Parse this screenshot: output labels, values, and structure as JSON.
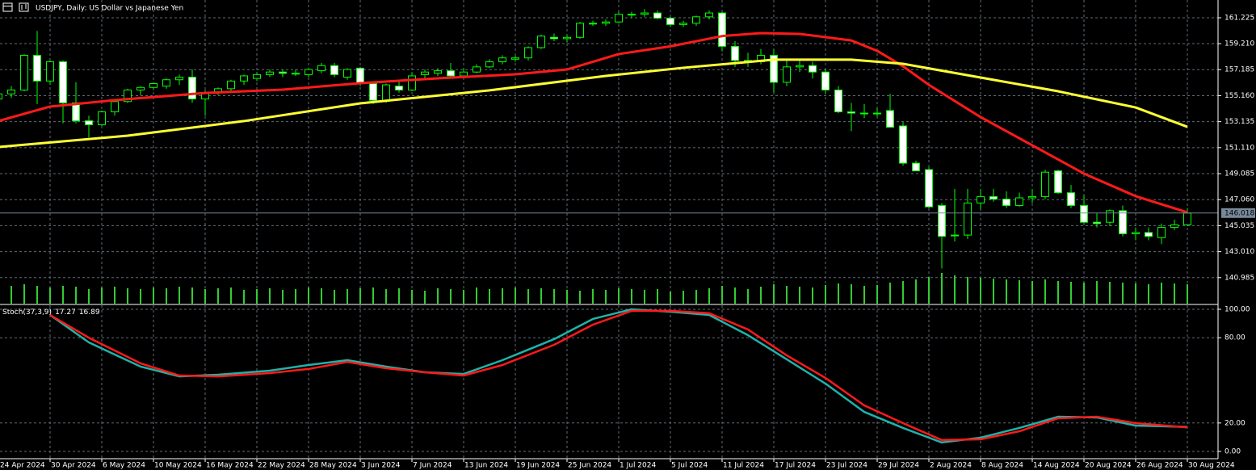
{
  "chart_data": [
    {
      "type": "candlestick",
      "title": "USDJPY, Daily:  US Dollar vs Japanese Yen",
      "categories": [
        "24 Apr 2024",
        null,
        null,
        null,
        "30 Apr 2024",
        null,
        null,
        null,
        "6 May 2024",
        null,
        null,
        null,
        "10 May 2024",
        null,
        null,
        null,
        "16 May 2024",
        null,
        null,
        null,
        "22 May 2024",
        null,
        null,
        null,
        "28 May 2024",
        null,
        null,
        null,
        "3 Jun 2024",
        null,
        null,
        null,
        "7 Jun 2024",
        null,
        null,
        null,
        "13 Jun 2024",
        null,
        null,
        null,
        "19 Jun 2024",
        null,
        null,
        null,
        "25 Jun 2024",
        null,
        null,
        null,
        "1 Jul 2024",
        null,
        null,
        null,
        "5 Jul 2024",
        null,
        null,
        null,
        "11 Jul 2024",
        null,
        null,
        null,
        "17 Jul 2024",
        null,
        null,
        null,
        "23 Jul 2024",
        null,
        null,
        null,
        "29 Jul 2024",
        null,
        null,
        null,
        "2 Aug 2024",
        null,
        null,
        null,
        "8 Aug 2024",
        null,
        null,
        null,
        "14 Aug 2024",
        null,
        null,
        null,
        "20 Aug 2024",
        null,
        null,
        null,
        "26 Aug 2024",
        null,
        null,
        null,
        "30 Aug 2024"
      ],
      "open": [
        154.9,
        155.3,
        155.6,
        158.3,
        156.3,
        157.8,
        154.6,
        153.2,
        152.9,
        153.9,
        154.7,
        155.6,
        155.8,
        155.9,
        156.4,
        156.6,
        154.9,
        155.4,
        155.7,
        156.3,
        156.5,
        156.8,
        157.0,
        156.9,
        156.8,
        157.1,
        157.5,
        156.6,
        157.3,
        156.1,
        154.8,
        155.9,
        155.6,
        156.8,
        156.9,
        157.1,
        156.7,
        157.0,
        157.4,
        157.8,
        158.0,
        158.1,
        158.9,
        159.7,
        159.6,
        159.7,
        160.8,
        160.8,
        160.9,
        161.5,
        161.5,
        161.6,
        161.2,
        160.7,
        160.8,
        161.3,
        161.6,
        159.0,
        157.9,
        157.8,
        158.3,
        156.2,
        157.4,
        157.5,
        157.0,
        155.6,
        153.9,
        153.8,
        153.8,
        154.0,
        152.8,
        149.9,
        149.4,
        146.6,
        144.3,
        144.3,
        146.8,
        147.3,
        147.1,
        146.6,
        147.2,
        147.3,
        149.3,
        147.6,
        146.6,
        145.3,
        145.3,
        146.2,
        144.4,
        144.5,
        144.1,
        144.9,
        145.1
      ],
      "high": [
        155.4,
        155.9,
        158.4,
        160.2,
        157.9,
        157.9,
        156.2,
        153.6,
        154.0,
        154.9,
        155.7,
        155.9,
        156.2,
        156.5,
        156.8,
        157.2,
        155.6,
        155.8,
        156.4,
        156.8,
        157.0,
        157.2,
        157.2,
        157.2,
        157.3,
        157.7,
        157.7,
        157.3,
        157.4,
        156.2,
        156.1,
        156.4,
        157.0,
        157.2,
        157.3,
        157.7,
        157.3,
        157.6,
        158.0,
        158.3,
        158.3,
        159.0,
        159.9,
        160.0,
        159.9,
        160.9,
        161.0,
        161.1,
        161.7,
        161.7,
        161.9,
        161.8,
        161.3,
        161.0,
        161.4,
        161.8,
        161.7,
        159.4,
        158.5,
        158.8,
        158.8,
        157.9,
        157.9,
        157.8,
        157.2,
        155.9,
        154.6,
        154.5,
        154.2,
        155.3,
        153.1,
        150.1,
        149.6,
        146.8,
        147.9,
        147.9,
        147.9,
        147.9,
        147.7,
        147.6,
        147.9,
        149.4,
        149.4,
        148.2,
        147.4,
        146.0,
        146.3,
        146.6,
        144.9,
        144.9,
        145.2,
        145.5,
        146.4
      ],
      "low": [
        154.6,
        155.0,
        155.5,
        154.5,
        156.0,
        153.0,
        153.0,
        151.9,
        152.8,
        153.6,
        154.6,
        155.2,
        155.6,
        155.7,
        156.0,
        154.6,
        153.6,
        155.2,
        155.5,
        156.0,
        156.3,
        156.6,
        156.6,
        156.7,
        156.6,
        156.9,
        156.6,
        156.4,
        155.9,
        154.5,
        154.6,
        155.4,
        155.5,
        156.5,
        156.7,
        156.5,
        156.6,
        156.9,
        157.3,
        157.6,
        157.8,
        157.9,
        158.8,
        159.4,
        159.3,
        159.6,
        160.6,
        160.6,
        160.8,
        161.2,
        161.3,
        161.1,
        160.5,
        160.5,
        160.6,
        161.1,
        158.6,
        157.4,
        157.4,
        157.6,
        155.4,
        155.9,
        157.0,
        156.5,
        155.3,
        153.8,
        152.4,
        153.4,
        153.5,
        152.7,
        149.7,
        149.3,
        146.4,
        141.7,
        143.8,
        144.0,
        146.3,
        146.9,
        146.4,
        146.5,
        146.8,
        147.1,
        147.5,
        146.4,
        145.2,
        144.9,
        145.0,
        144.2,
        143.9,
        143.9,
        143.6,
        144.7,
        145.0
      ],
      "close": [
        155.3,
        155.6,
        158.3,
        156.3,
        157.8,
        154.6,
        153.2,
        152.9,
        153.9,
        154.7,
        155.6,
        155.8,
        156.1,
        156.4,
        156.6,
        154.9,
        155.4,
        155.7,
        156.3,
        156.7,
        156.8,
        157.0,
        156.9,
        156.9,
        157.2,
        157.5,
        156.8,
        157.2,
        156.1,
        154.8,
        156.0,
        155.6,
        156.7,
        157.0,
        157.1,
        156.7,
        157.0,
        157.4,
        157.8,
        158.1,
        158.1,
        158.9,
        159.8,
        159.6,
        159.7,
        160.8,
        160.8,
        160.9,
        161.5,
        161.5,
        161.6,
        161.2,
        160.7,
        160.8,
        161.3,
        161.6,
        159.0,
        157.9,
        157.8,
        158.3,
        156.2,
        157.4,
        157.5,
        157.0,
        155.6,
        153.9,
        153.8,
        153.8,
        153.8,
        152.7,
        149.9,
        149.3,
        146.5,
        144.2,
        144.3,
        146.8,
        147.3,
        147.1,
        146.6,
        147.2,
        147.3,
        149.2,
        147.6,
        146.6,
        145.3,
        145.2,
        146.2,
        144.4,
        144.5,
        144.2,
        144.9,
        145.1,
        146.018
      ],
      "volume": [
        20,
        22,
        24,
        22,
        20,
        22,
        21,
        18,
        20,
        21,
        19,
        18,
        20,
        19,
        21,
        20,
        18,
        19,
        20,
        17,
        18,
        19,
        17,
        18,
        20,
        19,
        17,
        18,
        19,
        20,
        18,
        19,
        17,
        16,
        19,
        18,
        17,
        20,
        18,
        19,
        20,
        18,
        19,
        18,
        17,
        16,
        18,
        17,
        19,
        18,
        17,
        18,
        15,
        16,
        17,
        19,
        22,
        20,
        18,
        21,
        24,
        22,
        21,
        20,
        23,
        25,
        24,
        22,
        23,
        26,
        28,
        30,
        33,
        38,
        35,
        33,
        32,
        31,
        30,
        29,
        28,
        30,
        28,
        27,
        26,
        28,
        27,
        26,
        25,
        24,
        26,
        25,
        24
      ],
      "bull_color": "#000000",
      "bear_color": "#ffffff",
      "wick_color": "#00ff00",
      "volume_color": "#32cd32",
      "series": [
        {
          "color": "#ff1a1a",
          "x": [
            0,
            4,
            9,
            16,
            22,
            28,
            34,
            40,
            44,
            48,
            52,
            56,
            59,
            62,
            66,
            68,
            70,
            72,
            76,
            80,
            84,
            88,
            92
          ],
          "values": [
            153.18,
            154.31,
            154.81,
            155.37,
            155.63,
            156.13,
            156.51,
            156.82,
            157.2,
            158.4,
            159.0,
            159.8,
            160.03,
            159.97,
            159.46,
            158.65,
            157.45,
            156.0,
            153.49,
            151.29,
            149.09,
            147.33,
            146.07
          ]
        },
        {
          "color": "#ffff33",
          "x": [
            0,
            10,
            19,
            28,
            38,
            47,
            53,
            60,
            66,
            70,
            76,
            82,
            88,
            92
          ],
          "values": [
            151.16,
            152.04,
            153.18,
            154.56,
            155.57,
            156.7,
            157.33,
            157.96,
            157.96,
            157.64,
            156.57,
            155.5,
            154.24,
            152.73
          ]
        }
      ],
      "current_price": 146.018,
      "ylim": [
        138.96,
        162.61
      ],
      "yticks": [
        161.225,
        {
          "value": 159.21,
          "label": "159.210"
        },
        157.185,
        {
          "value": 155.16,
          "label": "155.160"
        },
        153.135,
        {
          "value": 151.11,
          "label": "151.110"
        },
        149.085,
        {
          "value": 147.06,
          "label": "147.060"
        },
        145.035,
        {
          "value": 143.01,
          "label": "143.010"
        },
        140.985
      ],
      "grid": true
    },
    {
      "type": "line",
      "title": "Stoch(37,3,9)",
      "series": [
        {
          "color": "#20b2aa",
          "x": [
            4,
            7,
            11,
            14,
            17,
            21,
            24,
            27,
            30,
            33,
            36,
            39,
            43,
            46,
            49,
            52,
            55,
            58,
            61,
            64,
            67,
            70,
            73,
            76,
            79,
            82,
            85,
            88,
            92
          ],
          "values": [
            96,
            76.7,
            59.7,
            52.8,
            54,
            56.8,
            60.8,
            64.2,
            59.7,
            55.7,
            54.5,
            64.2,
            79,
            93.2,
            100,
            98.3,
            96,
            81.8,
            64.8,
            47.7,
            27.8,
            16.5,
            6.3,
            9.7,
            16.5,
            24.4,
            23.9,
            18.2,
            17.27
          ]
        },
        {
          "color": "#ff1a1a",
          "x": [
            4,
            7,
            11,
            14,
            17,
            21,
            24,
            27,
            30,
            33,
            36,
            39,
            43,
            46,
            49,
            52,
            55,
            58,
            61,
            64,
            67,
            70,
            73,
            76,
            79,
            82,
            85,
            88,
            92
          ],
          "values": [
            96,
            80,
            62,
            53.4,
            52.8,
            55.1,
            58,
            63,
            58.5,
            55.7,
            53.4,
            60.8,
            75,
            89.2,
            98.9,
            98.9,
            97.2,
            85.8,
            67.6,
            51.7,
            32.4,
            19.9,
            8,
            8.5,
            14.2,
            23.3,
            24.4,
            19.9,
            16.89
          ]
        }
      ],
      "ylim": [
        -5.11,
        102.84
      ],
      "yticks": [
        {
          "value": 100,
          "label": "100.00"
        },
        {
          "value": 80,
          "label": "80.00"
        },
        {
          "value": 20,
          "label": "20.00"
        },
        {
          "value": 0,
          "label": "0.00"
        }
      ],
      "grid": true
    }
  ]
}
